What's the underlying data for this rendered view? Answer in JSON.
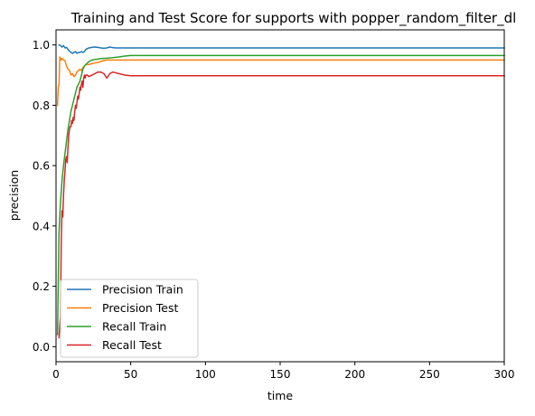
{
  "chart_data": {
    "type": "line",
    "title": "Training and Test Score for supports with popper_random_filter_dl",
    "xlabel": "time",
    "ylabel": "precision",
    "xlim": [
      0,
      300
    ],
    "ylim": [
      -0.05,
      1.05
    ],
    "xticks": [
      0,
      50,
      100,
      150,
      200,
      250,
      300
    ],
    "yticks": [
      0.0,
      0.2,
      0.4,
      0.6,
      0.8,
      1.0
    ],
    "grid": false,
    "legend_position": "lower-left",
    "series": [
      {
        "name": "Precision Train",
        "color": "#1f77b4",
        "x": [
          2,
          3,
          4,
          5,
          6,
          7,
          8,
          9,
          10,
          11,
          12,
          13,
          14,
          15,
          16,
          17,
          18,
          19,
          20,
          21,
          22,
          24,
          26,
          28,
          30,
          32,
          34,
          36,
          38,
          40,
          300
        ],
        "y": [
          1.0,
          0.998,
          0.993,
          0.998,
          0.99,
          0.992,
          0.985,
          0.98,
          0.975,
          0.972,
          0.975,
          0.978,
          0.972,
          0.975,
          0.975,
          0.978,
          0.975,
          0.978,
          0.985,
          0.988,
          0.99,
          0.992,
          0.993,
          0.992,
          0.99,
          0.989,
          0.99,
          0.993,
          0.991,
          0.99,
          0.99
        ]
      },
      {
        "name": "Precision Test",
        "color": "#ff7f0e",
        "x": [
          1,
          1.5,
          2,
          2.5,
          3,
          3.5,
          4,
          5,
          6,
          7,
          8,
          9,
          10,
          11,
          12,
          13,
          14,
          15,
          16,
          17,
          18,
          19,
          20,
          22,
          24,
          26,
          28,
          30,
          32,
          34,
          36,
          38,
          300
        ],
        "y": [
          0.8,
          0.86,
          0.87,
          0.96,
          0.955,
          0.95,
          0.955,
          0.95,
          0.948,
          0.93,
          0.92,
          0.915,
          0.9,
          0.905,
          0.895,
          0.9,
          0.91,
          0.915,
          0.92,
          0.915,
          0.925,
          0.93,
          0.935,
          0.935,
          0.938,
          0.94,
          0.942,
          0.945,
          0.948,
          0.95,
          0.95,
          0.95,
          0.95
        ]
      },
      {
        "name": "Recall Train",
        "color": "#2ca02c",
        "x": [
          1,
          2,
          3,
          4,
          5,
          6,
          7,
          8,
          9,
          10,
          11,
          12,
          13,
          14,
          15,
          16,
          17,
          18,
          19,
          20,
          21,
          22,
          24,
          26,
          28,
          30,
          34,
          38,
          42,
          46,
          50,
          300
        ],
        "y": [
          0.04,
          0.38,
          0.48,
          0.55,
          0.6,
          0.64,
          0.68,
          0.72,
          0.75,
          0.78,
          0.8,
          0.82,
          0.84,
          0.86,
          0.87,
          0.88,
          0.9,
          0.92,
          0.93,
          0.935,
          0.94,
          0.945,
          0.95,
          0.952,
          0.953,
          0.955,
          0.956,
          0.958,
          0.96,
          0.963,
          0.965,
          0.965
        ]
      },
      {
        "name": "Recall Test",
        "color": "#d62728",
        "x": [
          2,
          2.5,
          3,
          3.5,
          4,
          4.5,
          5,
          5.5,
          6,
          6.5,
          7,
          7.5,
          8,
          8.5,
          9,
          9.5,
          10,
          10.5,
          11,
          11.5,
          12,
          12.5,
          13,
          13.5,
          14,
          14.5,
          15,
          15.5,
          16,
          16.5,
          17,
          17.5,
          18,
          18.5,
          19,
          19.5,
          20,
          21,
          22,
          24,
          26,
          28,
          30,
          32,
          34,
          36,
          38,
          42,
          46,
          50,
          300
        ],
        "y": [
          0.03,
          0.07,
          0.1,
          0.35,
          0.45,
          0.43,
          0.5,
          0.55,
          0.58,
          0.62,
          0.63,
          0.61,
          0.66,
          0.7,
          0.72,
          0.73,
          0.73,
          0.75,
          0.74,
          0.76,
          0.75,
          0.78,
          0.8,
          0.79,
          0.81,
          0.83,
          0.82,
          0.84,
          0.86,
          0.85,
          0.87,
          0.88,
          0.86,
          0.89,
          0.9,
          0.89,
          0.9,
          0.9,
          0.895,
          0.9,
          0.905,
          0.91,
          0.91,
          0.905,
          0.89,
          0.905,
          0.91,
          0.905,
          0.9,
          0.898,
          0.898
        ]
      }
    ]
  }
}
